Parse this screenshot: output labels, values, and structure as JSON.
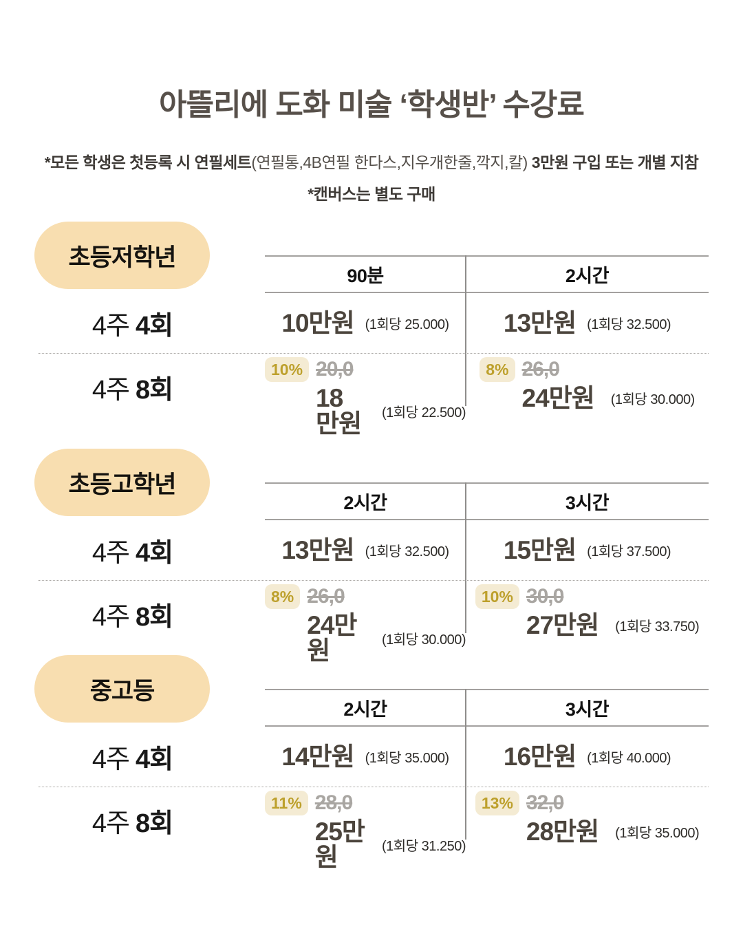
{
  "title": "아뜰리에 도화 미술 ‘학생반’ 수강료",
  "notes": {
    "line1_bold_prefix": "*모든 학생은 첫등록 시 연필세트",
    "line1_regular": "(연필통,4B연필 한다스,지우개한줄,깍지,칼)",
    "line1_bold_suffix": "3만원 구입 또는 개별 지참",
    "line2": "*캔버스는 별도 구매"
  },
  "colors": {
    "title-text": "#57504a",
    "pill-bg": "#f8deb0",
    "badge-bg": "#f4ebd3",
    "badge-text": "#bda02c",
    "price-text": "#4b443c",
    "strike-text": "#a9a6a2",
    "line-color": "#a3a19f"
  },
  "sections": [
    {
      "badge": "초등저학년",
      "columns": [
        "90분",
        "2시간"
      ],
      "rows": [
        {
          "label": "4주",
          "label_bold": "4회",
          "cells": [
            {
              "price": "10만원",
              "per": "(1회당 25.000)"
            },
            {
              "price": "13만원",
              "per": "(1회당 32.500)"
            }
          ]
        },
        {
          "label": "4주",
          "label_bold": "8회",
          "cells": [
            {
              "discount": "10%",
              "original": "20,0",
              "price": "18만원",
              "per": "(1회당 22.500)"
            },
            {
              "discount": "8%",
              "original": "26,0",
              "price": "24만원",
              "per": "(1회당 30.000)"
            }
          ]
        }
      ]
    },
    {
      "badge": "초등고학년",
      "columns": [
        "2시간",
        "3시간"
      ],
      "rows": [
        {
          "label": "4주",
          "label_bold": "4회",
          "cells": [
            {
              "price": "13만원",
              "per": "(1회당 32.500)"
            },
            {
              "price": "15만원",
              "per": "(1회당 37.500)"
            }
          ]
        },
        {
          "label": "4주",
          "label_bold": "8회",
          "cells": [
            {
              "discount": "8%",
              "original": "26,0",
              "price": "24만원",
              "per": "(1회당 30.000)"
            },
            {
              "discount": "10%",
              "original": "30,0",
              "price": "27만원",
              "per": "(1회당 33.750)"
            }
          ]
        }
      ]
    },
    {
      "badge": "중고등",
      "columns": [
        "2시간",
        "3시간"
      ],
      "rows": [
        {
          "label": "4주",
          "label_bold": "4회",
          "cells": [
            {
              "price": "14만원",
              "per": "(1회당 35.000)"
            },
            {
              "price": "16만원",
              "per": "(1회당 40.000)"
            }
          ]
        },
        {
          "label": "4주",
          "label_bold": "8회",
          "cells": [
            {
              "discount": "11%",
              "original": "28,0",
              "price": "25만원",
              "per": "(1회당 31.250)"
            },
            {
              "discount": "13%",
              "original": "32,0",
              "price": "28만원",
              "per": "(1회당 35.000)"
            }
          ]
        }
      ]
    }
  ]
}
